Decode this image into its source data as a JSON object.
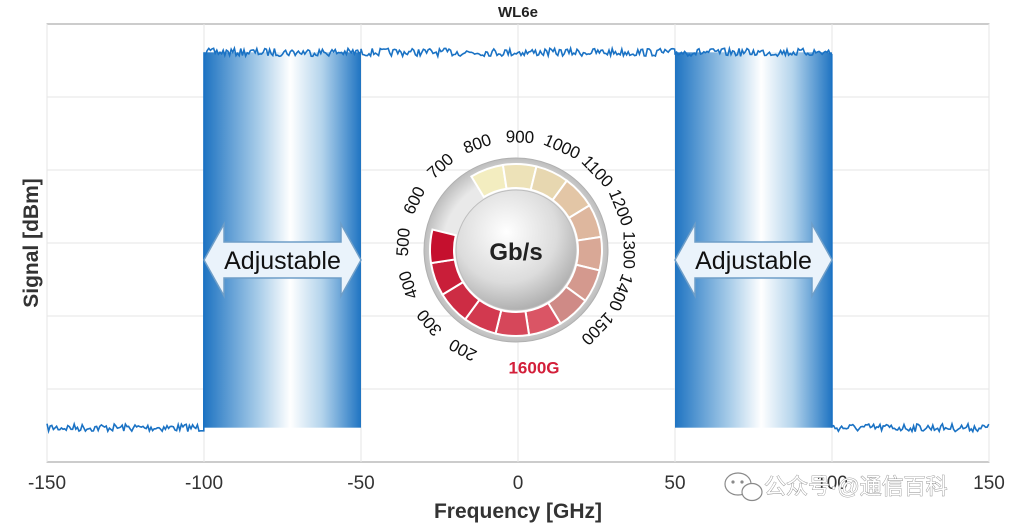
{
  "chart_data": {
    "type": "line",
    "title": "WL6e",
    "xlabel": "Frequency [GHz]",
    "ylabel": "Signal [dBm]",
    "xlim": [
      -150,
      150
    ],
    "xticks": [
      "-150",
      "-100",
      "-50",
      "0",
      "50",
      "100",
      "150"
    ],
    "grid": true,
    "series": [
      {
        "x": [
          -150,
          -100,
          -100,
          -50,
          -50,
          50,
          50,
          100,
          100,
          150
        ],
        "y": [
          0.04,
          0.04,
          0.96,
          0.96,
          0.96,
          0.96,
          0.96,
          0.96,
          0.04,
          0.04
        ]
      }
    ],
    "bands": [
      {
        "from": -100,
        "to": -50,
        "label": "Adjustable"
      },
      {
        "from": 50,
        "to": 100,
        "label": "Adjustable"
      }
    ],
    "line_color": "#1a72c4"
  },
  "dial": {
    "unit": "Gb/s",
    "ticks": [
      "200",
      "300",
      "400",
      "500",
      "600",
      "700",
      "800",
      "900",
      "1000",
      "1100",
      "1200",
      "1300",
      "1400",
      "1500"
    ],
    "max_label": "1600G",
    "value_color": "#d31f3a"
  },
  "watermark": {
    "text": "公众号·@通信百科"
  }
}
